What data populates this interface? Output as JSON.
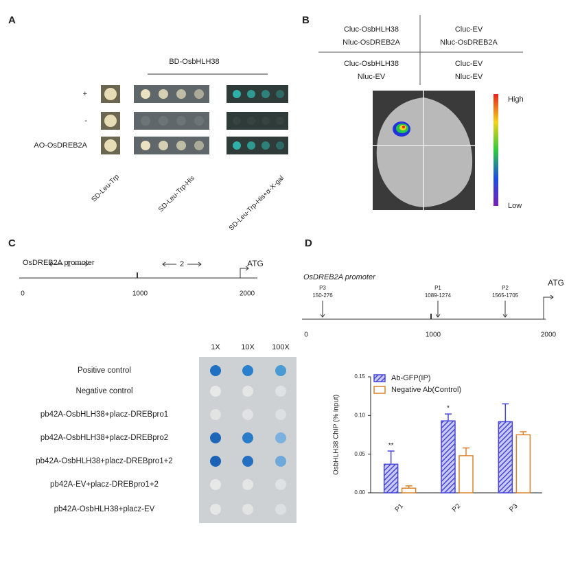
{
  "panel_a": {
    "label": "A",
    "header": "BD-OsbHLH38",
    "rows": [
      "+",
      "-",
      "AO-OsDREB2A"
    ],
    "columns": [
      "SD-Leu-Trp",
      "SD-Leu-Trp-His",
      "SD-Leu-Trp-His+α-X-gal"
    ]
  },
  "panel_b": {
    "label": "B",
    "cells": [
      [
        "Cluc-OsbHLH38",
        "Nluc-OsDREB2A"
      ],
      [
        "Cluc-EV",
        "Nluc-OsDREB2A"
      ],
      [
        "Cluc-OsbHLH38",
        "Nluc-EV"
      ],
      [
        "Cluc-EV",
        "Nluc-EV"
      ]
    ],
    "scale": {
      "high": "High",
      "low": "Low"
    }
  },
  "panel_c": {
    "label": "C",
    "title": "OsDREB2A promoter",
    "atg": "ATG",
    "regions": [
      "1",
      "2"
    ],
    "positions": [
      "0",
      "1000",
      "2000"
    ]
  },
  "panel_d": {
    "label": "D",
    "title": "OsDREB2A promoter",
    "atg": "ATG",
    "probes": [
      {
        "name": "P3",
        "range": "150-276"
      },
      {
        "name": "P1",
        "range": "1089-1274"
      },
      {
        "name": "P2",
        "range": "1565-1705"
      }
    ],
    "positions": [
      "0",
      "1000",
      "2000"
    ]
  },
  "yeast_assay": {
    "dilutions": [
      "1X",
      "10X",
      "100X"
    ],
    "rows": [
      "Positive control",
      "Negative control",
      "pb42A-OsbHLH38+placz-DREBpro1",
      "pb42A-OsbHLH38+placz-DREBpro2",
      "pb42A-OsbHLH38+placz-DREBpro1+2",
      "pb42A-EV+placz-DREBpro1+2",
      "pb42A-OsbHLH38+placz-EV"
    ]
  },
  "chart_data": {
    "type": "bar",
    "y_label": "OsbHLH38 ChIP (% input)",
    "categories": [
      "P1",
      "P2",
      "P3"
    ],
    "series": [
      {
        "name": "Ab-GFP(IP)",
        "color": "#4646d8",
        "values": [
          0.037,
          0.093,
          0.092
        ],
        "errors": [
          0.017,
          0.009,
          0.023
        ]
      },
      {
        "name": "Negative Ab(Control)",
        "color": "#d9822b",
        "values": [
          0.006,
          0.048,
          0.075
        ],
        "errors": [
          0.003,
          0.01,
          0.004
        ]
      }
    ],
    "significance": [
      "**",
      "*",
      null
    ],
    "ylim": [
      0,
      0.15
    ],
    "yticks": [
      {
        "value": 0,
        "label": "0.00"
      },
      {
        "value": 0.05,
        "label": "0.05"
      },
      {
        "value": 0.1,
        "label": "0.10"
      },
      {
        "value": 0.15,
        "label": "0.15"
      }
    ]
  }
}
